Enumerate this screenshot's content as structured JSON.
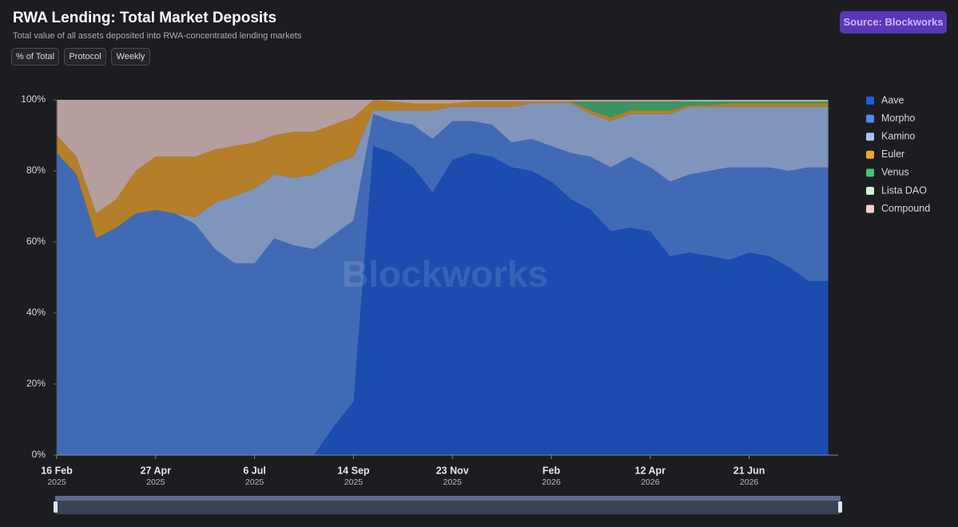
{
  "chart_data": {
    "type": "stacked_area",
    "title": "RWA Lending: Total Market Deposits",
    "subtitle": "Total value of all assets deposited into RWA-concentrated lending markets",
    "controls": [
      "% of Total",
      "Protocol",
      "Weekly"
    ],
    "source": "Source: Blockworks",
    "watermark": "Blockworks",
    "x": [
      "2025-02-16",
      "2025-03-02",
      "2025-03-16",
      "2025-03-30",
      "2025-04-13",
      "2025-04-27",
      "2025-05-11",
      "2025-05-25",
      "2025-06-08",
      "2025-06-22",
      "2025-07-06",
      "2025-07-20",
      "2025-08-03",
      "2025-08-17",
      "2025-08-31",
      "2025-09-14",
      "2025-09-28",
      "2025-10-12",
      "2025-10-26",
      "2025-11-09",
      "2025-11-23",
      "2025-12-07",
      "2025-12-21",
      "2026-01-04",
      "2026-01-18",
      "2026-02-01",
      "2026-02-15",
      "2026-03-01",
      "2026-03-15",
      "2026-03-29",
      "2026-04-12",
      "2026-04-26",
      "2026-05-10",
      "2026-05-24",
      "2026-06-07",
      "2026-06-21",
      "2026-07-05",
      "2026-07-19",
      "2026-08-02",
      "2026-08-16"
    ],
    "series": [
      {
        "name": "Aave",
        "color": "#1d5ee6",
        "values": [
          0,
          0,
          0,
          0,
          0,
          0,
          0,
          0,
          0,
          0,
          0,
          0,
          0,
          0,
          8,
          15,
          87,
          85,
          81,
          74,
          83,
          85,
          84,
          81,
          80,
          77,
          72,
          69,
          63,
          64,
          63,
          56,
          57,
          56,
          55,
          57,
          56,
          53,
          49,
          49
        ]
      },
      {
        "name": "Morpho",
        "color": "#5088f0",
        "values": [
          85,
          79,
          61,
          64,
          68,
          69,
          68,
          65,
          58,
          54,
          54,
          61,
          59,
          58,
          54,
          51,
          9,
          9,
          12,
          15,
          11,
          9,
          9,
          7,
          9,
          10,
          13,
          15,
          18,
          20,
          18,
          21,
          22,
          24,
          26,
          24,
          25,
          27,
          32,
          32
        ]
      },
      {
        "name": "Kamino",
        "color": "#a8c4f7",
        "values": [
          0,
          0,
          0,
          0,
          0,
          0,
          0,
          2,
          13,
          19,
          21,
          18,
          19,
          21,
          20,
          18,
          1,
          3,
          4,
          8,
          4,
          4,
          5,
          10,
          10,
          12,
          14,
          12,
          13,
          12,
          15,
          19,
          19,
          18,
          17,
          17,
          17,
          18,
          17,
          17
        ]
      },
      {
        "name": "Euler",
        "color": "#f0a52b",
        "values": [
          5,
          5,
          7,
          8,
          12,
          15,
          16,
          17,
          15,
          14,
          13,
          11,
          13,
          12,
          11,
          11,
          3,
          2.5,
          2,
          2,
          1,
          1.5,
          1.5,
          1.5,
          0.5,
          0.5,
          0.5,
          1,
          1,
          1,
          1,
          1,
          0.5,
          0.5,
          1,
          1,
          1,
          1,
          1,
          1
        ]
      },
      {
        "name": "Venus",
        "color": "#4cc27a",
        "values": [
          0,
          0,
          0,
          0,
          0,
          0,
          0,
          0,
          0,
          0,
          0,
          0,
          0,
          0,
          0,
          0,
          0,
          0,
          0,
          0,
          0,
          0,
          0,
          0,
          0,
          0,
          0,
          2.5,
          4.5,
          2.5,
          2.5,
          2.5,
          1,
          1,
          0.5,
          0.5,
          0.5,
          0.5,
          0.5,
          0.5
        ]
      },
      {
        "name": "Lista DAO",
        "color": "#c7f7d2",
        "values": [
          0,
          0,
          0,
          0,
          0,
          0,
          0,
          0,
          0,
          0,
          0,
          0,
          0,
          0,
          0,
          0,
          0,
          0,
          0,
          0,
          0,
          0,
          0,
          0,
          0,
          0,
          0,
          0,
          0,
          0,
          0,
          0,
          0.5,
          0.5,
          0.5,
          0.5,
          0.5,
          0.5,
          0.5,
          0.5
        ]
      },
      {
        "name": "Compound",
        "color": "#f2cfcf",
        "values": [
          10,
          16,
          32,
          28,
          20,
          16,
          16,
          16,
          14,
          13,
          12,
          10,
          9,
          9,
          7,
          5,
          0,
          0.5,
          1,
          1,
          1,
          0.5,
          0.5,
          0.5,
          0.5,
          0.5,
          0.5,
          0.5,
          0.5,
          0.5,
          0.5,
          0.5,
          0,
          0,
          0,
          0,
          0,
          0,
          0,
          0
        ]
      }
    ],
    "xlim": [
      "2025-02-16",
      "2026-08-23"
    ],
    "xticks": [
      {
        "value": "2025-02-16",
        "label": "16 Feb",
        "year": "2025"
      },
      {
        "value": "2025-04-27",
        "label": "27 Apr",
        "year": "2025"
      },
      {
        "value": "2025-07-06",
        "label": "6 Jul",
        "year": "2025"
      },
      {
        "value": "2025-09-14",
        "label": "14 Sep",
        "year": "2025"
      },
      {
        "value": "2025-11-23",
        "label": "23 Nov",
        "year": "2025"
      },
      {
        "value": "2026-02-01",
        "label": "Feb",
        "year": "2026"
      },
      {
        "value": "2026-04-12",
        "label": "12 Apr",
        "year": "2026"
      },
      {
        "value": "2026-06-21",
        "label": "21 Jun",
        "year": "2026"
      }
    ],
    "ylim": [
      0,
      100
    ],
    "yticks": [
      {
        "value": 0,
        "label": "0%"
      },
      {
        "value": 20,
        "label": "20%"
      },
      {
        "value": 40,
        "label": "40%"
      },
      {
        "value": 60,
        "label": "60%"
      },
      {
        "value": 80,
        "label": "80%"
      },
      {
        "value": 100,
        "label": "100%"
      }
    ],
    "legend": "right"
  }
}
